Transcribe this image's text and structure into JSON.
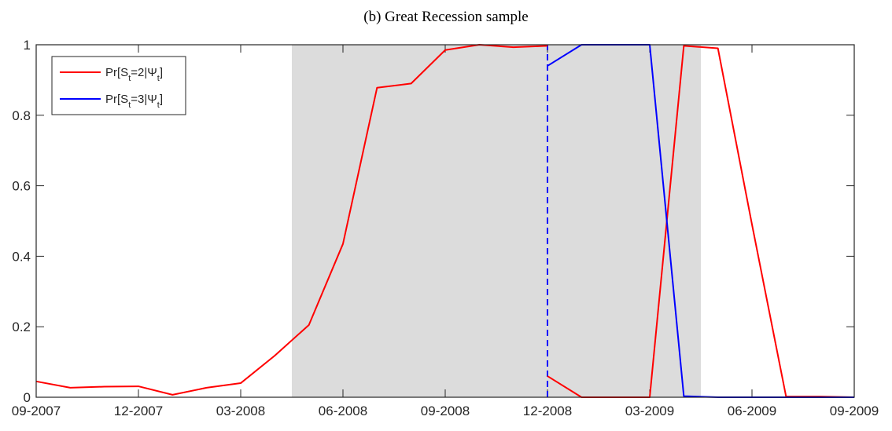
{
  "chart_data": {
    "type": "line",
    "title": "(b) Great Recession sample",
    "x": [
      "09-2007",
      "10-2007",
      "11-2007",
      "12-2007",
      "01-2008",
      "02-2008",
      "03-2008",
      "04-2008",
      "05-2008",
      "06-2008",
      "07-2008",
      "08-2008",
      "09-2008",
      "10-2008",
      "11-2008",
      "12-2008",
      "12-2008",
      "12-2008",
      "01-2009",
      "02-2009",
      "03-2009",
      "04-2009",
      "05-2009",
      "06-2009",
      "07-2009",
      "08-2009",
      "09-2009"
    ],
    "series": [
      {
        "name": "Pr[S_t=2|Ψ_t]",
        "color": "#ff0000",
        "values": [
          0.045,
          0.027,
          0.03,
          0.031,
          0.007,
          0.027,
          0.04,
          0.118,
          0.205,
          0.435,
          0.878,
          0.89,
          0.985,
          1.0,
          0.993,
          0.997,
          null,
          0.06,
          0.0,
          0.0,
          0.0,
          0.997,
          0.99,
          0.49,
          0.002,
          0.002,
          0.0
        ]
      },
      {
        "name": "Pr[S_t=3|Ψ_t]",
        "color": "#0000ff",
        "values": [
          null,
          null,
          null,
          null,
          null,
          null,
          null,
          null,
          null,
          null,
          null,
          null,
          null,
          null,
          null,
          null,
          null,
          0.94,
          1.0,
          1.0,
          1.0,
          0.003,
          0.0,
          0.0,
          0.0,
          0.0,
          0.0
        ]
      }
    ],
    "xlim": [
      "09-2007",
      "09-2009"
    ],
    "xticks": [
      "09-2007",
      "12-2007",
      "03-2008",
      "06-2008",
      "09-2008",
      "12-2008",
      "03-2009",
      "06-2009",
      "09-2009"
    ],
    "ylim": [
      0,
      1
    ],
    "yticks": [
      0,
      0.2,
      0.4,
      0.6,
      0.8,
      1
    ],
    "shade": {
      "from": "05-2008",
      "to": "04-2009",
      "color": "#dcdcdc"
    },
    "vline": {
      "x": "12-2008",
      "color": "#0000ff",
      "style": "dashed"
    },
    "legend": "top-left",
    "grid": false
  }
}
